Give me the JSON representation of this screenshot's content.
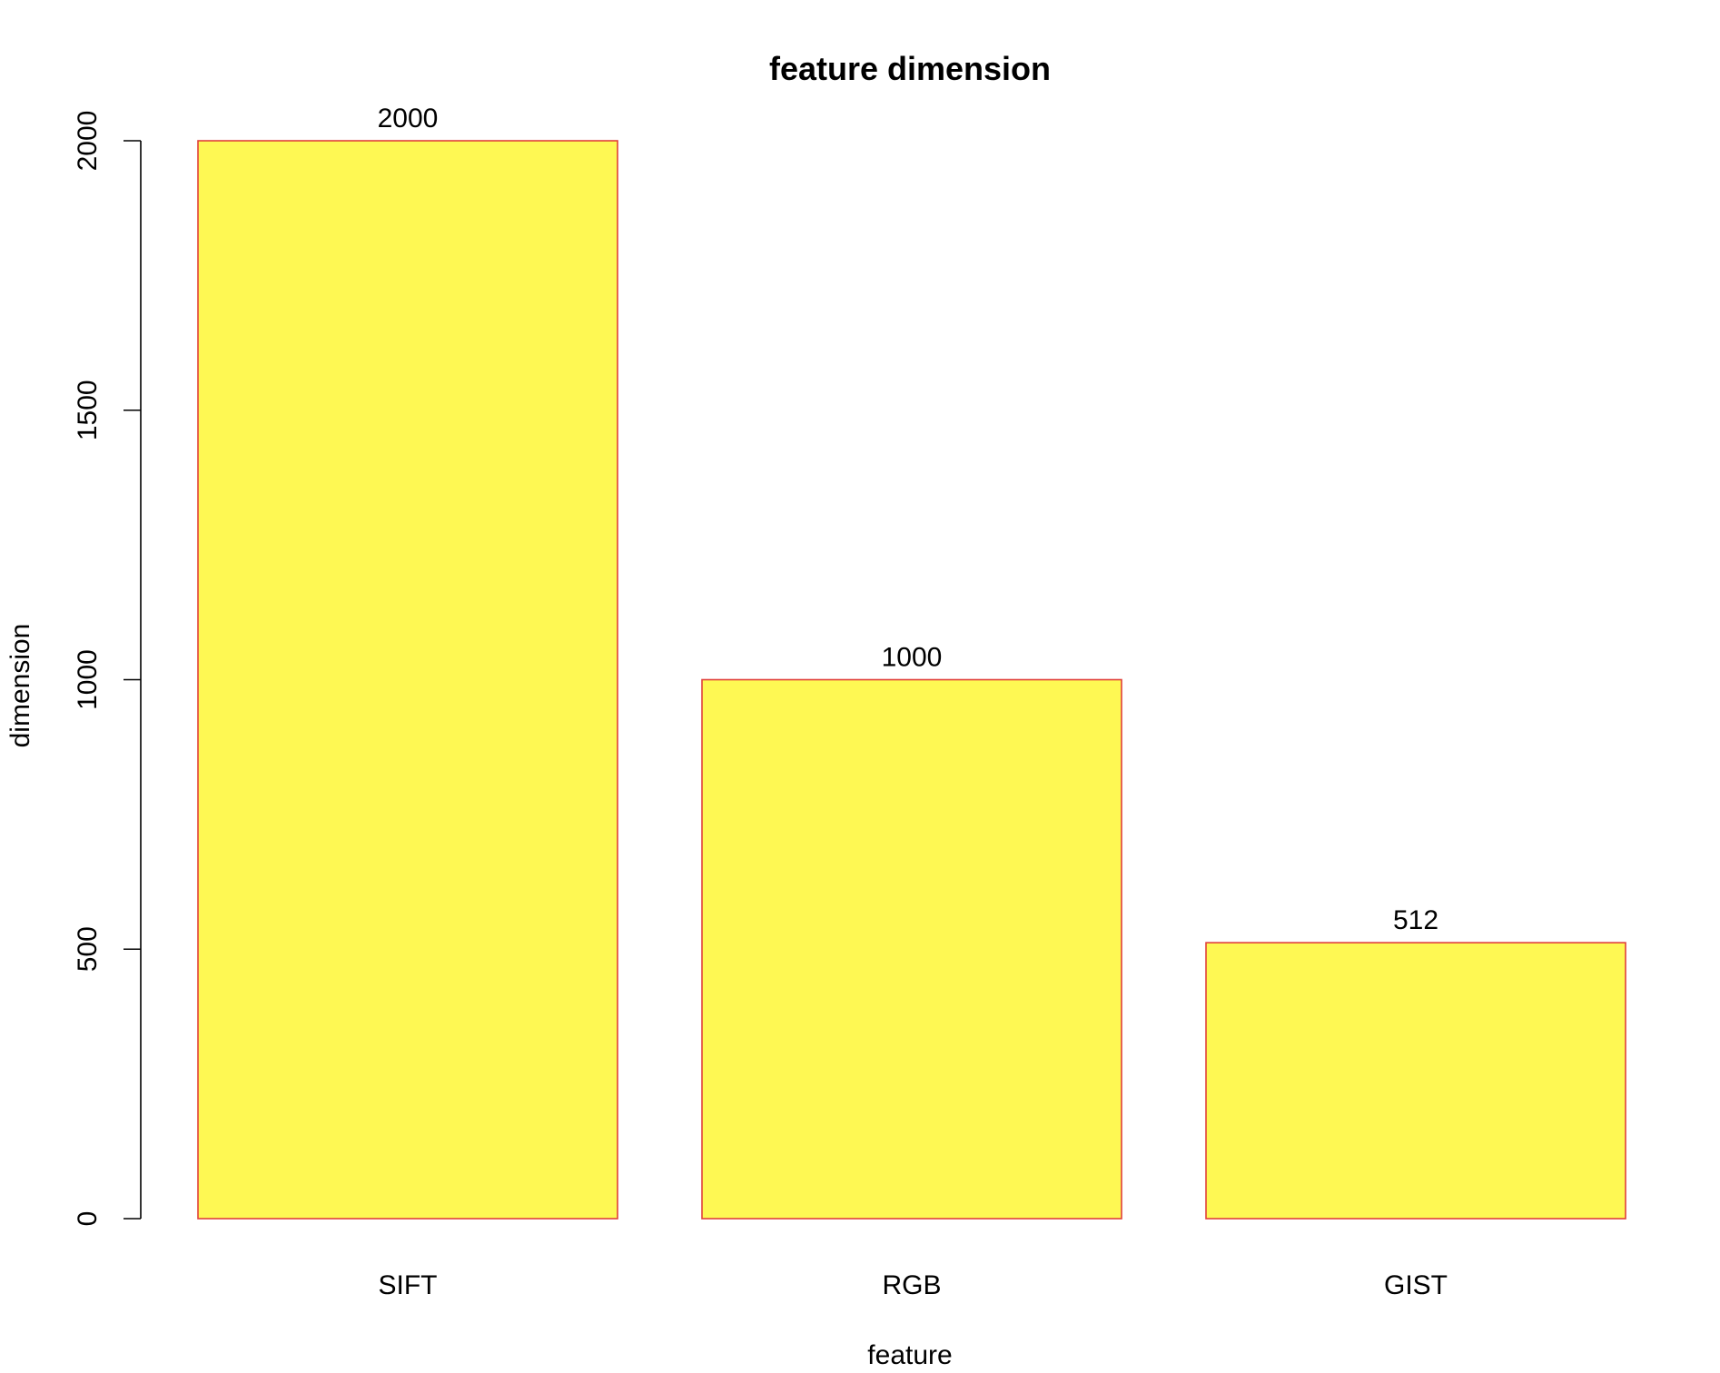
{
  "chart_data": {
    "type": "bar",
    "title": "feature dimension",
    "xlabel": "feature",
    "ylabel": "dimension",
    "categories": [
      "SIFT",
      "RGB",
      "GIST"
    ],
    "values": [
      2000,
      1000,
      512
    ],
    "value_labels": [
      "2000",
      "1000",
      "512"
    ],
    "yticks": [
      0,
      500,
      1000,
      1500,
      2000
    ],
    "ytick_labels": [
      "0",
      "500",
      "1000",
      "1500",
      "2000"
    ],
    "ylim": [
      0,
      2000
    ],
    "grid": false,
    "bar_fill": "#FEF853",
    "bar_border": "#E0403A"
  }
}
